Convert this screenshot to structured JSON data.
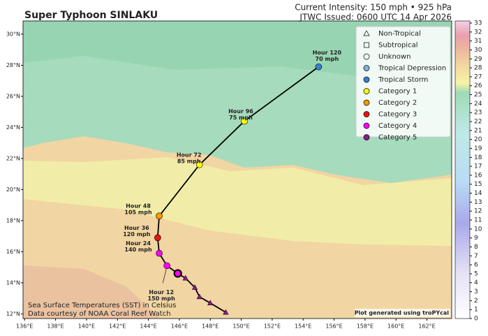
{
  "title": "Super Typhoon SINLAKU",
  "subtitle_lines": [
    "Current Intensity: 150 mph • 925 hPa",
    "JTWC Issued: 0600 UTC 14 Apr 2026"
  ],
  "footnote_lines": [
    "Sea Surface Temperatures (SST) in Celsius",
    "Data courtesy of NOAA Coral Reef Watch"
  ],
  "credit": "Plot generated using troPYcal",
  "map": {
    "lonlim": [
      135.9,
      163.6
    ],
    "latlim": [
      11.7,
      30.85
    ],
    "lonticks": [
      {
        "value": 136,
        "label": "136°E"
      },
      {
        "value": 138,
        "label": "138°E"
      },
      {
        "value": 140,
        "label": "140°E"
      },
      {
        "value": 142,
        "label": "142°E"
      },
      {
        "value": 144,
        "label": "144°E"
      },
      {
        "value": 146,
        "label": "146°E"
      },
      {
        "value": 148,
        "label": "148°E"
      },
      {
        "value": 150,
        "label": "150°E"
      },
      {
        "value": 152,
        "label": "152°E"
      },
      {
        "value": 154,
        "label": "154°E"
      },
      {
        "value": 156,
        "label": "156°E"
      },
      {
        "value": 158,
        "label": "158°E"
      },
      {
        "value": 160,
        "label": "160°E"
      },
      {
        "value": 162,
        "label": "162°E"
      }
    ],
    "latticks": [
      {
        "value": 12,
        "label": "12°N"
      },
      {
        "value": 14,
        "label": "14°N"
      },
      {
        "value": 16,
        "label": "16°N"
      },
      {
        "value": 18,
        "label": "18°N"
      },
      {
        "value": 20,
        "label": "20°N"
      },
      {
        "value": 22,
        "label": "22°N"
      },
      {
        "value": 24,
        "label": "24°N"
      },
      {
        "value": 26,
        "label": "26°N"
      },
      {
        "value": 28,
        "label": "28°N"
      },
      {
        "value": 30,
        "label": "30°N"
      }
    ],
    "past_track": {
      "color": "#8b1a8b",
      "lon": [
        149.0,
        148.0,
        147.3,
        147.0,
        146.4
      ],
      "lat": [
        12.1,
        12.7,
        13.1,
        13.7,
        14.3
      ]
    },
    "current": {
      "lon": 145.9,
      "lat": 14.6,
      "color": "#ff00ff"
    },
    "forecast": [
      {
        "lon": 145.2,
        "lat": 15.1,
        "color": "#ff00ff",
        "label": [
          "Hour 12",
          "150 mph"
        ]
      },
      {
        "lon": 144.7,
        "lat": 15.9,
        "color": "#ff00ff",
        "label": [
          "Hour 24",
          "140 mph"
        ]
      },
      {
        "lon": 144.6,
        "lat": 16.9,
        "color": "#ee1111",
        "label": [
          "Hour 36",
          "120 mph"
        ]
      },
      {
        "lon": 144.7,
        "lat": 18.3,
        "color": "#ff9900",
        "label": [
          "Hour 48",
          "105 mph"
        ]
      },
      {
        "lon": 147.3,
        "lat": 21.6,
        "color": "#ffff00",
        "label": [
          "Hour 72",
          "85 mph"
        ]
      },
      {
        "lon": 150.2,
        "lat": 24.4,
        "color": "#ffff00",
        "label": [
          "Hour 96",
          "75 mph"
        ]
      },
      {
        "lon": 155.0,
        "lat": 27.9,
        "color": "#3a7fd0",
        "label": [
          "Hour 120",
          "70 mph"
        ]
      }
    ]
  },
  "legend": [
    {
      "name": "Non-Tropical",
      "marker": "triangle",
      "color": "none"
    },
    {
      "name": "Subtropical",
      "marker": "square",
      "color": "none"
    },
    {
      "name": "Unknown",
      "marker": "circle",
      "color": "none"
    },
    {
      "name": "Tropical Depression",
      "marker": "circle",
      "color": "#7fb2e0"
    },
    {
      "name": "Tropical Storm",
      "marker": "circle",
      "color": "#3a7fd0"
    },
    {
      "name": "Category 1",
      "marker": "circle",
      "color": "#ffff00"
    },
    {
      "name": "Category 2",
      "marker": "circle",
      "color": "#ff9900"
    },
    {
      "name": "Category 3",
      "marker": "circle",
      "color": "#ee1111"
    },
    {
      "name": "Category 4",
      "marker": "circle",
      "color": "#ff00ff"
    },
    {
      "name": "Category 5",
      "marker": "circle",
      "color": "#8b1a8b"
    }
  ],
  "colorbar": {
    "lim": [
      0,
      33
    ],
    "ticks": [
      0,
      1,
      2,
      3,
      4,
      5,
      6,
      7,
      8,
      9,
      10,
      11,
      12,
      13,
      14,
      15,
      16,
      17,
      18,
      19,
      20,
      21,
      22,
      23,
      24,
      25,
      26,
      27,
      28,
      29,
      30,
      31,
      32,
      33
    ]
  }
}
